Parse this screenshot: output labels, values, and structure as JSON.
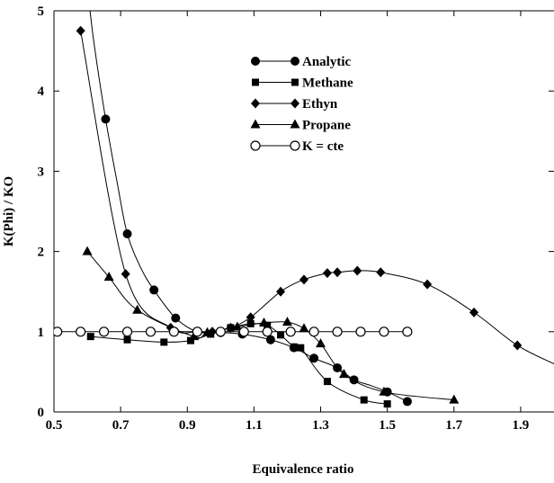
{
  "chart_data": {
    "type": "line",
    "title": "",
    "xlabel": "Equivalence ratio",
    "ylabel": "K(Phi) / KO",
    "xlim": [
      0.5,
      2.0
    ],
    "ylim": [
      0,
      5
    ],
    "xticks": [
      0.5,
      0.7,
      0.9,
      1.1,
      1.3,
      1.5,
      1.7,
      1.9
    ],
    "xtick_labels": [
      "0.5",
      "0.7",
      "0.9",
      "1.1",
      "1.3",
      "1.5",
      "1.7",
      "1.9"
    ],
    "yticks": [
      0,
      1,
      2,
      3,
      4,
      5
    ],
    "ytick_labels": [
      "0",
      "1",
      "2",
      "3",
      "4",
      "5"
    ],
    "grid": false,
    "legend_position": "top-center",
    "series": [
      {
        "name": "Analytic",
        "marker": "filled-circle",
        "x": [
          0.655,
          0.72,
          0.8,
          0.865,
          0.93,
          1.0,
          1.065,
          1.15,
          1.22,
          1.28,
          1.35,
          1.4,
          1.5,
          1.56
        ],
        "y": [
          3.65,
          2.22,
          1.52,
          1.17,
          1.0,
          0.99,
          0.97,
          0.9,
          0.8,
          0.67,
          0.55,
          0.4,
          0.25,
          0.13
        ],
        "curve_x": [
          0.58,
          0.6,
          0.62,
          0.655,
          0.69,
          0.72,
          0.76,
          0.8,
          0.865,
          0.93,
          1.0,
          1.065,
          1.15,
          1.22,
          1.28,
          1.35,
          1.4,
          1.45,
          1.5,
          1.56
        ],
        "curve_y": [
          6.0,
          5.3,
          4.6,
          3.65,
          2.85,
          2.22,
          1.8,
          1.52,
          1.17,
          1.0,
          0.99,
          0.97,
          0.9,
          0.8,
          0.67,
          0.55,
          0.4,
          0.33,
          0.25,
          0.13
        ]
      },
      {
        "name": "Methane",
        "marker": "filled-square",
        "x": [
          0.61,
          0.72,
          0.83,
          0.91,
          0.97,
          1.03,
          1.09,
          1.14,
          1.18,
          1.22,
          1.24,
          1.32,
          1.43,
          1.5
        ],
        "y": [
          0.94,
          0.9,
          0.87,
          0.89,
          0.97,
          1.05,
          1.1,
          1.08,
          0.96,
          0.81,
          0.8,
          0.38,
          0.15,
          0.1
        ]
      },
      {
        "name": "Ethyn",
        "marker": "filled-diamond",
        "x": [
          0.58,
          0.715,
          0.85,
          0.93,
          0.975,
          1.03,
          1.09,
          1.18,
          1.25,
          1.32,
          1.35,
          1.41,
          1.48,
          1.62,
          1.76,
          1.89
        ],
        "y": [
          4.75,
          1.72,
          1.05,
          1.0,
          1.0,
          1.05,
          1.18,
          1.5,
          1.65,
          1.73,
          1.74,
          1.76,
          1.74,
          1.59,
          1.24,
          0.83
        ],
        "curve_x": [
          0.58,
          0.715,
          0.85,
          0.93,
          0.975,
          1.03,
          1.09,
          1.18,
          1.25,
          1.32,
          1.35,
          1.41,
          1.48,
          1.62,
          1.76,
          1.89,
          2.0
        ],
        "curve_y": [
          4.75,
          1.72,
          1.05,
          1.0,
          1.0,
          1.05,
          1.18,
          1.5,
          1.65,
          1.73,
          1.74,
          1.76,
          1.74,
          1.59,
          1.24,
          0.83,
          0.6
        ]
      },
      {
        "name": "Propane",
        "marker": "filled-triangle",
        "x": [
          0.6,
          0.665,
          0.75,
          0.92,
          0.96,
          1.05,
          1.13,
          1.2,
          1.25,
          1.3,
          1.37,
          1.49,
          1.7
        ],
        "y": [
          2.0,
          1.68,
          1.27,
          0.94,
          0.99,
          1.06,
          1.11,
          1.12,
          1.04,
          0.85,
          0.47,
          0.25,
          0.15
        ]
      },
      {
        "name": "K = cte",
        "marker": "open-circle",
        "x": [
          0.51,
          0.58,
          0.65,
          0.72,
          0.79,
          0.86,
          0.93,
          1.0,
          1.07,
          1.14,
          1.21,
          1.28,
          1.35,
          1.42,
          1.49,
          1.56
        ],
        "y": [
          1,
          1,
          1,
          1,
          1,
          1,
          1,
          1,
          1,
          1,
          1,
          1,
          1,
          1,
          1,
          1
        ]
      }
    ]
  }
}
